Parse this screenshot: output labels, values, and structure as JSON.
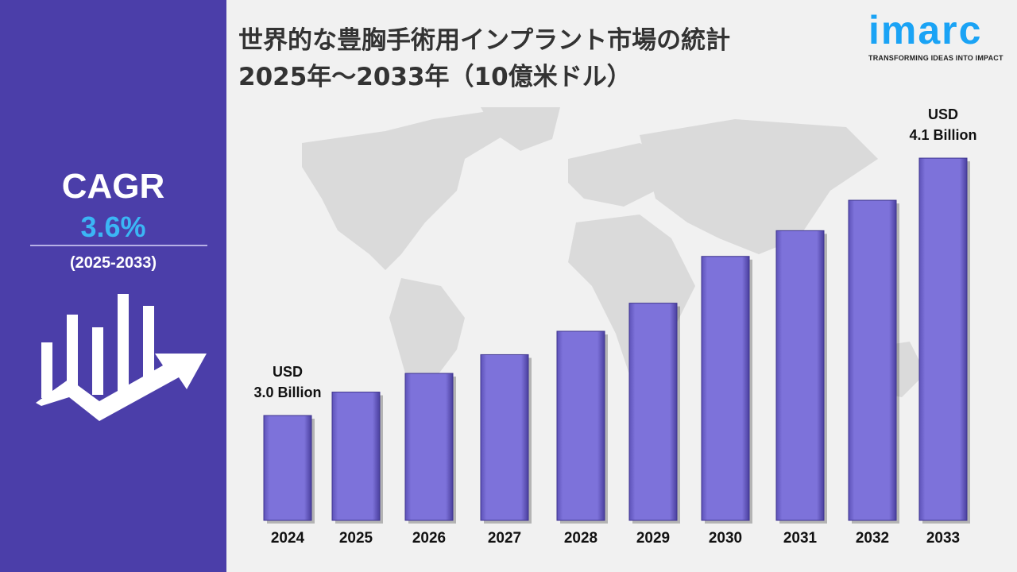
{
  "title_line1": "世界的な豊胸手術用インプラント市場の統計",
  "title_line2": "2025年～2033年（10億米ドル）",
  "logo": {
    "name": "imarc",
    "tagline": "TRANSFORMING IDEAS INTO IMPACT"
  },
  "cagr": {
    "label": "CAGR",
    "value": "3.6%",
    "period": "(2025-2033)"
  },
  "colors": {
    "panel": "#4b3ea9",
    "bar": "#7b70d8",
    "accent": "#3bb6f5",
    "map": "#d9d9d9"
  },
  "chart_data": {
    "type": "bar",
    "categories": [
      "2024",
      "2025",
      "2026",
      "2027",
      "2028",
      "2029",
      "2030",
      "2031",
      "2032",
      "2033"
    ],
    "values": [
      3.0,
      3.1,
      3.18,
      3.26,
      3.36,
      3.48,
      3.68,
      3.79,
      3.92,
      4.1
    ],
    "annotations": [
      {
        "category": "2024",
        "line1": "USD",
        "line2": "3.0 Billion"
      },
      {
        "category": "2033",
        "line1": "USD",
        "line2": "4.1 Billion"
      }
    ],
    "unit": "Billion USD",
    "grid": false,
    "legend": "none"
  }
}
